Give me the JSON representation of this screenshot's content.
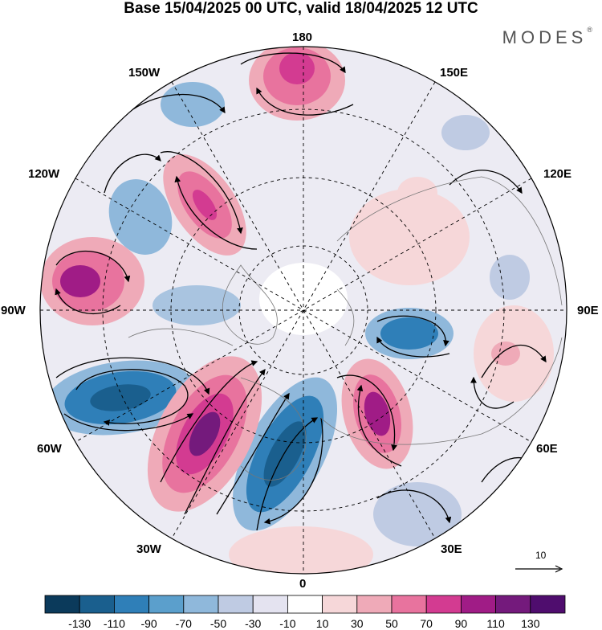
{
  "title": "Base 15/04/2025 00 UTC, valid 18/04/2025 12 UTC",
  "brand": {
    "name": "MODES",
    "mark": "®"
  },
  "map": {
    "projection": "north-polar-stereographic",
    "longitude_labels": {
      "top": "180",
      "top_left": "150W",
      "top_right": "150E",
      "upper_left": "120W",
      "upper_right": "120E",
      "left": "90W",
      "right": "90E",
      "lower_left": "60W",
      "lower_right": "60E",
      "bottom_left": "30W",
      "bottom_right": "30E",
      "bottom": "0"
    },
    "reference_vector": "10"
  },
  "colorbar": {
    "ticks": [
      "-130",
      "-110",
      "-90",
      "-70",
      "-50",
      "-30",
      "-10",
      "10",
      "30",
      "50",
      "70",
      "90",
      "110",
      "130"
    ],
    "colors": [
      "#0b3a5b",
      "#1a5f8e",
      "#2f7fb8",
      "#5b9fcc",
      "#8fb8db",
      "#bfcbe3",
      "#e4e3f0",
      "#ffffff",
      "#f6d7d9",
      "#efaab8",
      "#e8739e",
      "#d33b91",
      "#a01c86",
      "#741a7c",
      "#4f0d6e"
    ]
  }
}
